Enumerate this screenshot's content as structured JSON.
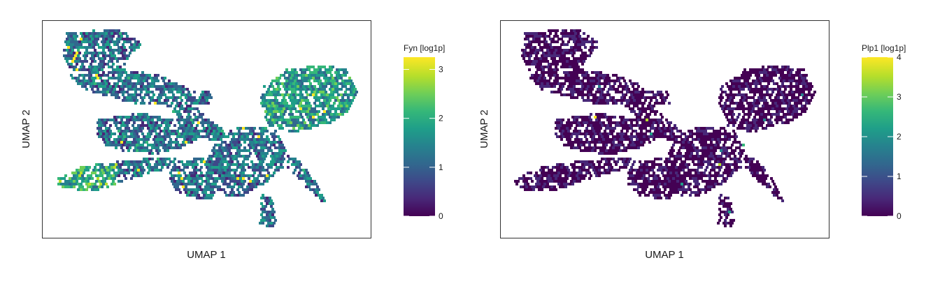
{
  "colors": {
    "frame": "#333333",
    "viridis": [
      "#440154",
      "#482878",
      "#3e4989",
      "#31688e",
      "#26828e",
      "#1f9e89",
      "#35b779",
      "#6ece58",
      "#b5de2b",
      "#fde725"
    ]
  },
  "chart_data": [
    {
      "type": "scatter",
      "subtype": "hexbin-embedding",
      "xlabel": "UMAP 1",
      "ylabel": "UMAP 2",
      "grid": false,
      "colorbar": {
        "title": "Fyn [log1p]",
        "range": [
          0,
          3.25
        ],
        "ticks": [
          0,
          1,
          2,
          3
        ],
        "colormap": "viridis",
        "placement": "right"
      },
      "typical_value": 1.2
    },
    {
      "type": "scatter",
      "subtype": "hexbin-embedding",
      "xlabel": "UMAP 1",
      "ylabel": "UMAP 2",
      "grid": false,
      "colorbar": {
        "title": "Plp1 [log1p]",
        "range": [
          0,
          4
        ],
        "ticks": [
          0,
          1,
          2,
          3,
          4
        ],
        "colormap": "viridis",
        "placement": "right"
      },
      "typical_value": 0.05
    }
  ]
}
